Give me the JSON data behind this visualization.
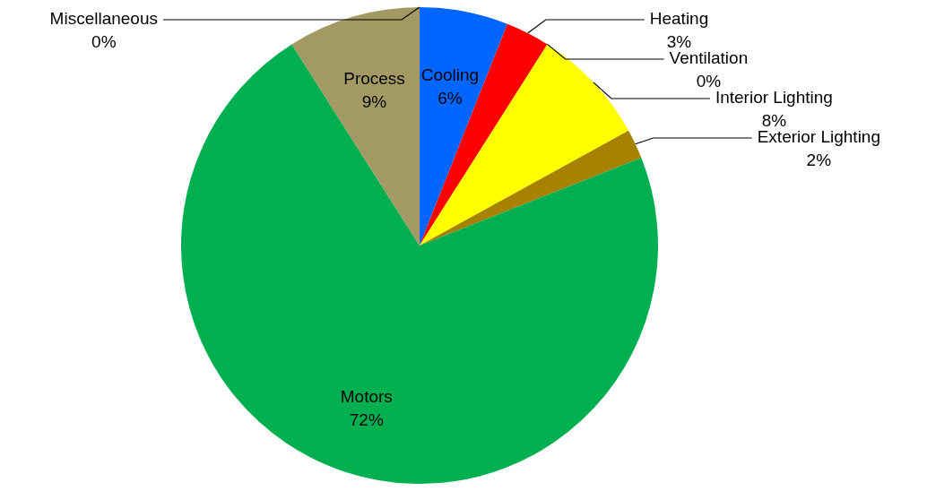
{
  "chart_data": {
    "type": "pie",
    "categories": [
      "Cooling",
      "Heating",
      "Ventilation",
      "Interior Lighting",
      "Exterior Lighting",
      "Motors",
      "Process",
      "Miscellaneous"
    ],
    "values": [
      6,
      3,
      0,
      8,
      2,
      72,
      9,
      0
    ],
    "value_labels": [
      "6%",
      "3%",
      "0%",
      "8%",
      "2%",
      "72%",
      "9%",
      "0%"
    ],
    "colors": [
      "#0066ff",
      "#ff0000",
      "#7030a0",
      "#ffff00",
      "#a68200",
      "#00b050",
      "#a39a63",
      "#808080"
    ],
    "legend": false
  }
}
